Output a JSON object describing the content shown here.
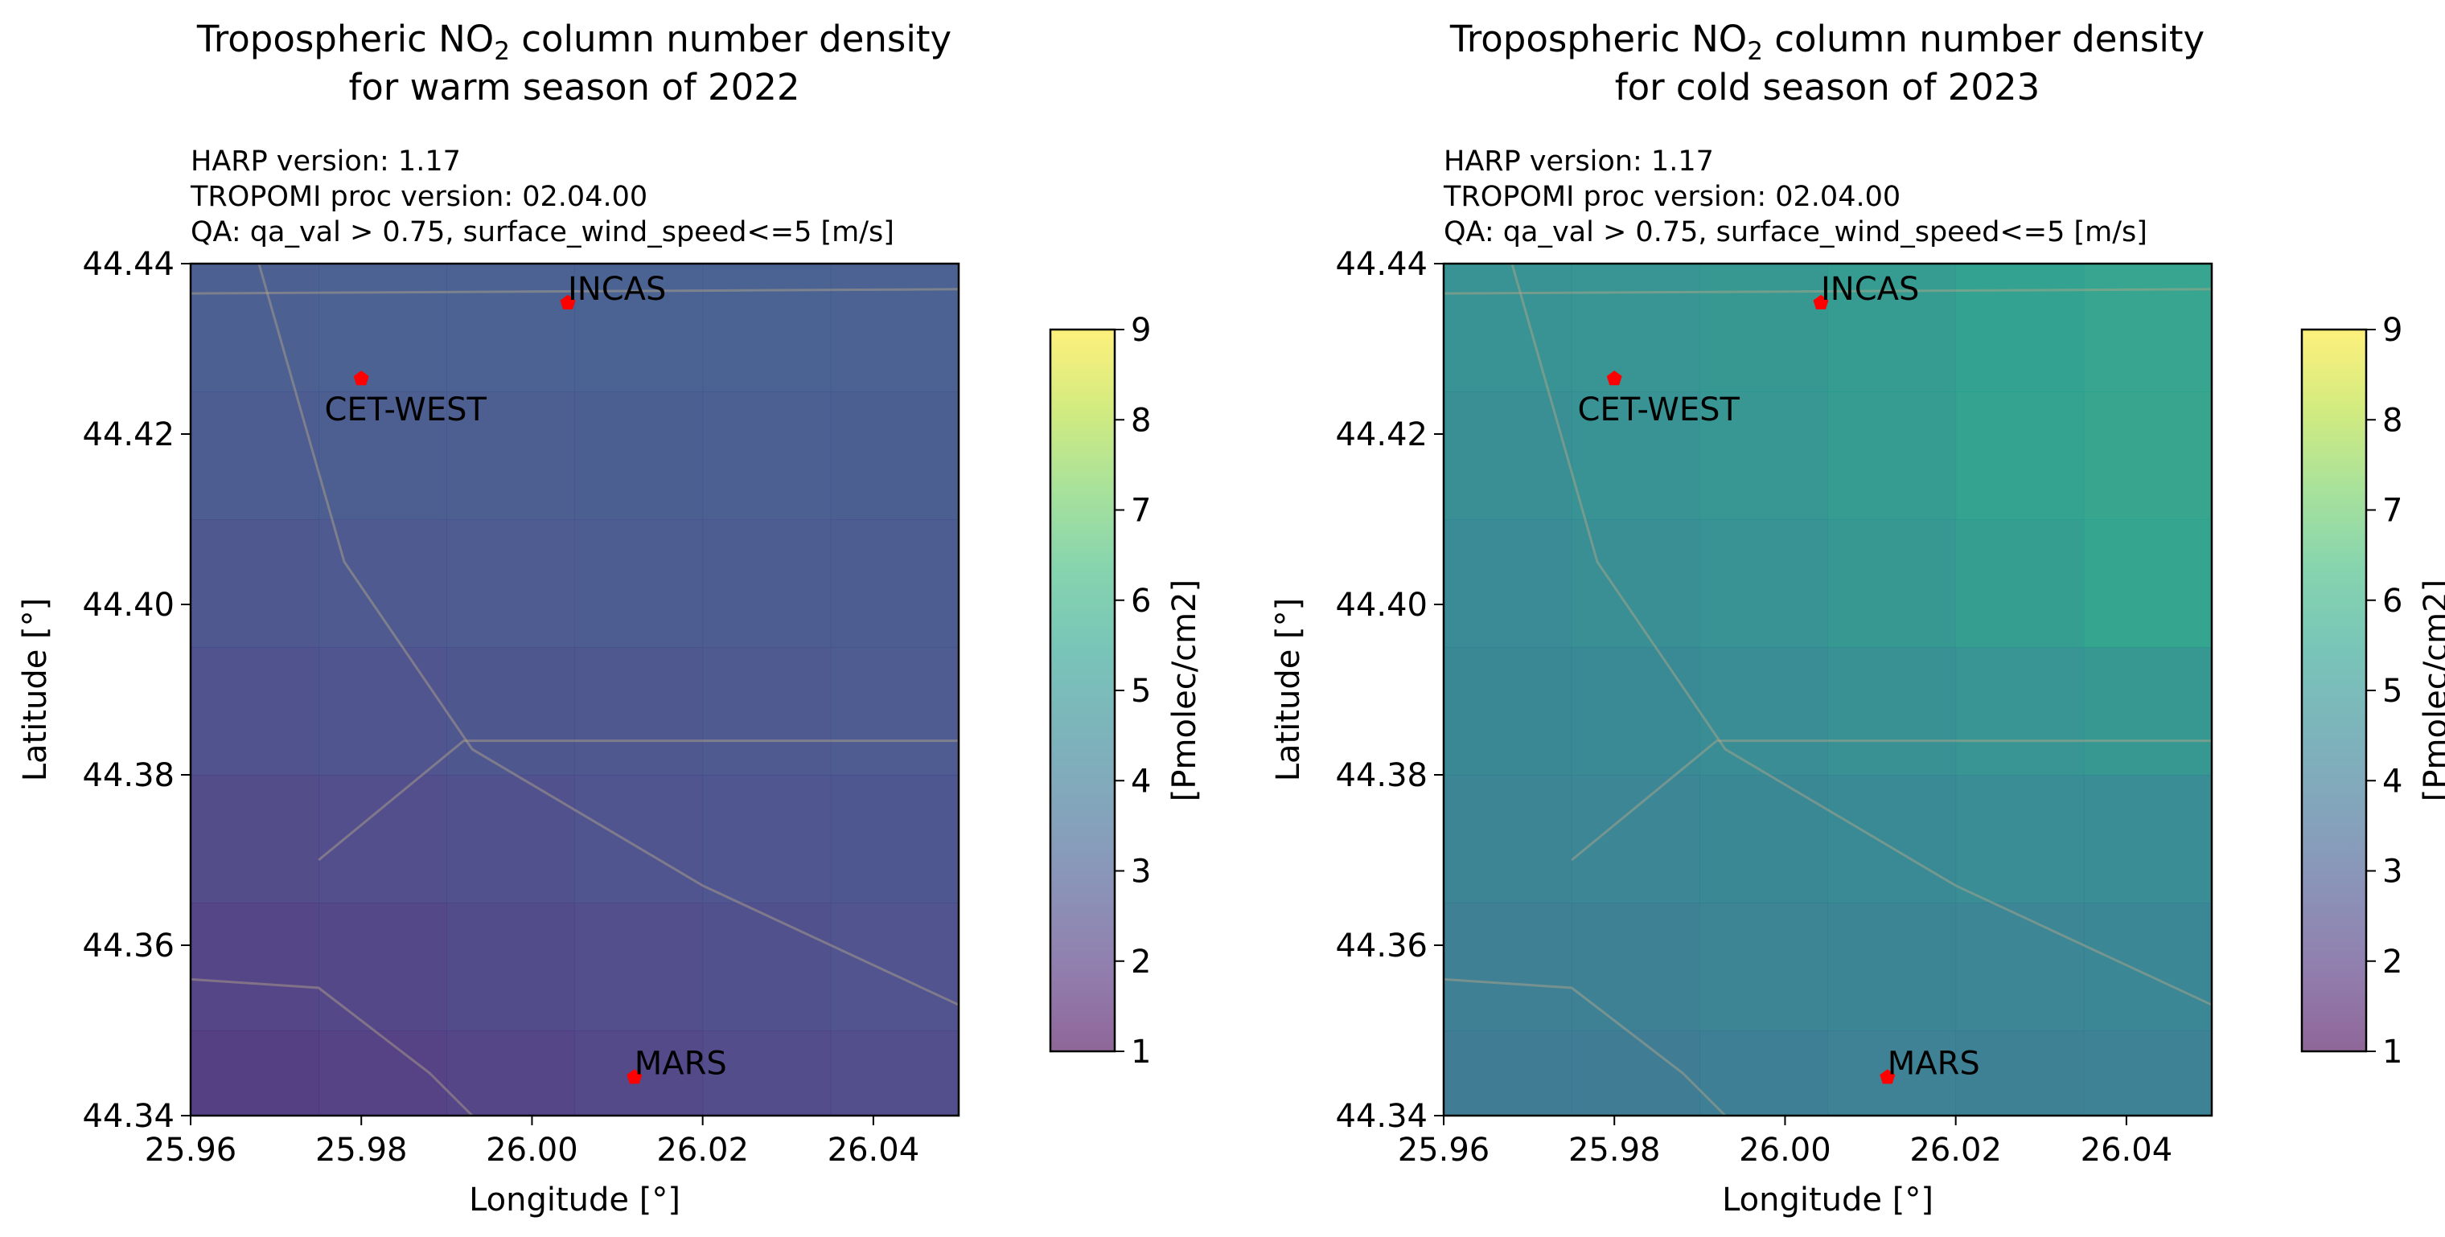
{
  "figure_label": "Tropospheric NO2 column number density, warm season 2022 vs cold season 2023",
  "colors": {
    "marker": "#ff0000",
    "background": "#ffffff",
    "axis": "#000000",
    "colormap": [
      "#440154",
      "#482878",
      "#3e4989",
      "#31688e",
      "#26828e",
      "#1f9e89",
      "#35b779",
      "#6ece58",
      "#b5de2b",
      "#fde725"
    ],
    "colormap_alpha": 0.6
  },
  "chart_data": [
    {
      "type": "heatmap",
      "id": "warm",
      "title_line1_pre": "Tropospheric NO",
      "title_line1_sub": "2",
      "title_line1_post": " column number density",
      "title_line2": "for warm season of 2022",
      "meta": [
        "HARP version: 1.17",
        "TROPOMI proc version: 02.04.00",
        "QA: qa_val > 0.75, surface_wind_speed<=5 [m/s]"
      ],
      "xlabel": "Longitude [°]",
      "ylabel": "Latitude [°]",
      "xlim": [
        25.96,
        26.05
      ],
      "ylim": [
        44.34,
        44.44
      ],
      "xticks": [
        25.96,
        25.98,
        26.0,
        26.02,
        26.04
      ],
      "xtick_labels": [
        "25.96",
        "25.98",
        "26.00",
        "26.02",
        "26.04"
      ],
      "yticks": [
        44.34,
        44.36,
        44.38,
        44.4,
        44.42,
        44.44
      ],
      "ytick_labels": [
        "44.34",
        "44.36",
        "44.38",
        "44.40",
        "44.42",
        "44.44"
      ],
      "grid_lon_edges": [
        25.96,
        25.975,
        25.99,
        26.005,
        26.02,
        26.035,
        26.05
      ],
      "grid_lat_edges": [
        44.44,
        44.425,
        44.41,
        44.395,
        44.38,
        44.365,
        44.35,
        44.34
      ],
      "values": [
        [
          3.05,
          3.08,
          3.1,
          3.12,
          3.12,
          3.1
        ],
        [
          2.95,
          2.98,
          3.0,
          3.02,
          3.03,
          3.02
        ],
        [
          2.8,
          2.85,
          2.88,
          2.92,
          2.95,
          2.95
        ],
        [
          2.62,
          2.68,
          2.74,
          2.8,
          2.85,
          2.88
        ],
        [
          2.42,
          2.5,
          2.58,
          2.66,
          2.72,
          2.76
        ],
        [
          2.22,
          2.3,
          2.4,
          2.5,
          2.58,
          2.64
        ],
        [
          2.05,
          2.12,
          2.22,
          2.34,
          2.44,
          2.52
        ]
      ],
      "stations": [
        {
          "name": "INCAS",
          "lon": 26.0042,
          "lat": 44.4354,
          "label_pos": "upper-right"
        },
        {
          "name": "CET-WEST",
          "lon": 25.98,
          "lat": 44.4265,
          "label_pos": "below"
        },
        {
          "name": "MARS",
          "lon": 26.012,
          "lat": 44.3445,
          "label_pos": "upper-right"
        }
      ],
      "colorbar": {
        "label": "[Pmolec/cm2]",
        "range": [
          1,
          9
        ],
        "ticks": [
          1,
          2,
          3,
          4,
          5,
          6,
          7,
          8,
          9
        ],
        "tick_labels": [
          "1",
          "2",
          "3",
          "4",
          "5",
          "6",
          "7",
          "8",
          "9"
        ]
      }
    },
    {
      "type": "heatmap",
      "id": "cold",
      "title_line1_pre": "Tropospheric NO",
      "title_line1_sub": "2",
      "title_line1_post": " column number density",
      "title_line2": "for cold season of 2023",
      "meta": [
        "HARP version: 1.17",
        "TROPOMI proc version: 02.04.00",
        "QA: qa_val > 0.75, surface_wind_speed<=5 [m/s]"
      ],
      "xlabel": "Longitude [°]",
      "ylabel": "Latitude [°]",
      "xlim": [
        25.96,
        26.05
      ],
      "ylim": [
        44.34,
        44.44
      ],
      "xticks": [
        25.96,
        25.98,
        26.0,
        26.02,
        26.04
      ],
      "xtick_labels": [
        "25.96",
        "25.98",
        "26.00",
        "26.02",
        "26.04"
      ],
      "yticks": [
        44.34,
        44.36,
        44.38,
        44.4,
        44.42,
        44.44
      ],
      "ytick_labels": [
        "44.34",
        "44.36",
        "44.38",
        "44.40",
        "44.42",
        "44.44"
      ],
      "grid_lon_edges": [
        25.96,
        25.975,
        25.99,
        26.005,
        26.02,
        26.035,
        26.05
      ],
      "grid_lat_edges": [
        44.44,
        44.425,
        44.41,
        44.395,
        44.38,
        44.365,
        44.35,
        44.34
      ],
      "values": [
        [
          4.85,
          4.95,
          5.05,
          5.2,
          5.4,
          5.55
        ],
        [
          4.75,
          4.85,
          4.98,
          5.2,
          5.45,
          5.6
        ],
        [
          4.6,
          4.72,
          4.85,
          5.05,
          5.3,
          5.5
        ],
        [
          4.45,
          4.55,
          4.65,
          4.8,
          4.95,
          5.05
        ],
        [
          4.3,
          4.4,
          4.48,
          4.55,
          4.62,
          4.65
        ],
        [
          4.15,
          4.22,
          4.3,
          4.36,
          4.4,
          4.42
        ],
        [
          4.0,
          4.05,
          4.12,
          4.18,
          4.22,
          4.25
        ]
      ],
      "stations": [
        {
          "name": "INCAS",
          "lon": 26.0042,
          "lat": 44.4354,
          "label_pos": "upper-right"
        },
        {
          "name": "CET-WEST",
          "lon": 25.98,
          "lat": 44.4265,
          "label_pos": "below"
        },
        {
          "name": "MARS",
          "lon": 26.012,
          "lat": 44.3445,
          "label_pos": "upper-right"
        }
      ],
      "colorbar": {
        "label": "[Pmolec/cm2]",
        "range": [
          1,
          9
        ],
        "ticks": [
          1,
          2,
          3,
          4,
          5,
          6,
          7,
          8,
          9
        ],
        "tick_labels": [
          "1",
          "2",
          "3",
          "4",
          "5",
          "6",
          "7",
          "8",
          "9"
        ]
      }
    }
  ]
}
